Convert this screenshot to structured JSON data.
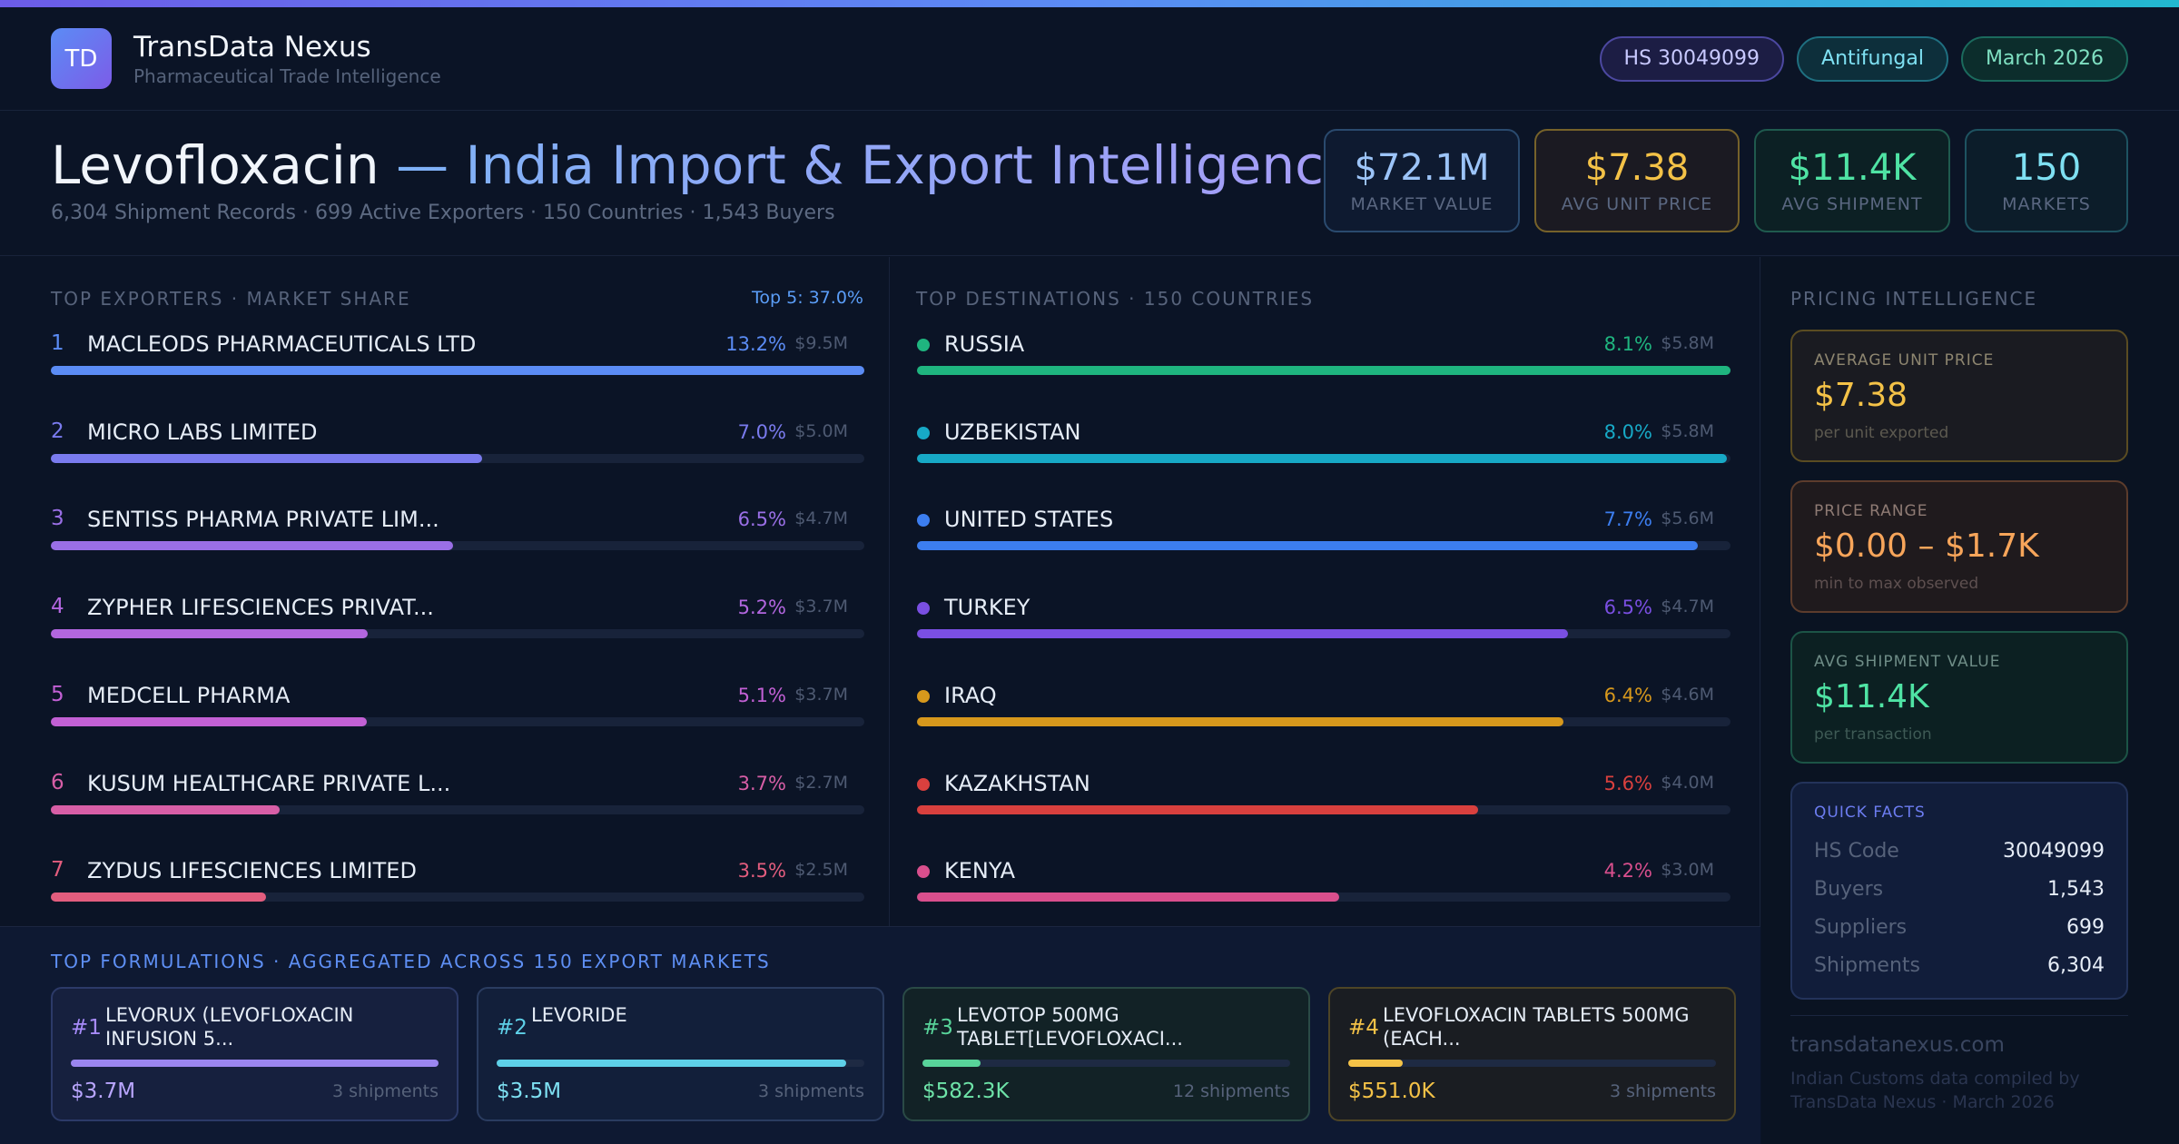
{
  "brand": {
    "logo": "TD",
    "name": "TransData Nexus",
    "subtitle": "Pharmaceutical Trade Intelligence"
  },
  "tags": {
    "hs": "HS 30049099",
    "category": "Antifungal",
    "period": "March 2026"
  },
  "title": {
    "drug": "Levofloxacin",
    "rest": " — India Import & Export Intelligence",
    "subtitle": "6,304 Shipment Records · 699 Active Exporters · 150 Countries · 1,543 Buyers"
  },
  "kpis": [
    {
      "value": "$72.1M",
      "label": "MARKET VALUE"
    },
    {
      "value": "$7.38",
      "label": "AVG UNIT PRICE"
    },
    {
      "value": "$11.4K",
      "label": "AVG SHIPMENT"
    },
    {
      "value": "150",
      "label": "MARKETS"
    }
  ],
  "exporters": {
    "title": "TOP EXPORTERS · MARKET SHARE",
    "top5": "Top 5: 37.0%",
    "items": [
      {
        "rank": "1",
        "name": "MACLEODS PHARMACEUTICALS LTD",
        "pct": "13.2%",
        "value": "$9.5M",
        "share": 1.0,
        "color": "#5b8cf5"
      },
      {
        "rank": "2",
        "name": "MICRO LABS LIMITED",
        "pct": "7.0%",
        "value": "$5.0M",
        "share": 0.53,
        "color": "#7a7bee"
      },
      {
        "rank": "3",
        "name": "SENTISS PHARMA PRIVATE LIM...",
        "pct": "6.5%",
        "value": "$4.7M",
        "share": 0.494,
        "color": "#9a6fe6"
      },
      {
        "rank": "4",
        "name": "ZYPHER LIFESCIENCES PRIVAT...",
        "pct": "5.2%",
        "value": "$3.7M",
        "share": 0.39,
        "color": "#b266df"
      },
      {
        "rank": "5",
        "name": "MEDCELL PHARMA",
        "pct": "5.1%",
        "value": "$3.7M",
        "share": 0.388,
        "color": "#c260d4"
      },
      {
        "rank": "6",
        "name": "KUSUM HEALTHCARE PRIVATE L...",
        "pct": "3.7%",
        "value": "$2.7M",
        "share": 0.281,
        "color": "#d75ea6"
      },
      {
        "rank": "7",
        "name": "ZYDUS LIFESCIENCES LIMITED",
        "pct": "3.5%",
        "value": "$2.5M",
        "share": 0.265,
        "color": "#e35d7e"
      }
    ]
  },
  "destinations": {
    "title": "TOP DESTINATIONS · 150 COUNTRIES",
    "items": [
      {
        "name": "RUSSIA",
        "pct": "8.1%",
        "value": "$5.8M",
        "share": 1.0,
        "color": "#1fb57f"
      },
      {
        "name": "UZBEKISTAN",
        "pct": "8.0%",
        "value": "$5.8M",
        "share": 0.995,
        "color": "#17a9c6"
      },
      {
        "name": "UNITED STATES",
        "pct": "7.7%",
        "value": "$5.6M",
        "share": 0.96,
        "color": "#3c7ef0"
      },
      {
        "name": "TURKEY",
        "pct": "6.5%",
        "value": "$4.7M",
        "share": 0.8,
        "color": "#7a4fe2"
      },
      {
        "name": "IRAQ",
        "pct": "6.4%",
        "value": "$4.6M",
        "share": 0.795,
        "color": "#d7981c"
      },
      {
        "name": "KAZAKHSTAN",
        "pct": "5.6%",
        "value": "$4.0M",
        "share": 0.69,
        "color": "#d9403e"
      },
      {
        "name": "KENYA",
        "pct": "4.2%",
        "value": "$3.0M",
        "share": 0.519,
        "color": "#d94f8d"
      }
    ]
  },
  "formulations": {
    "title": "TOP FORMULATIONS · AGGREGATED ACROSS 150 EXPORT MARKETS",
    "items": [
      {
        "rank": "#1",
        "name": "LEVORUX (LEVOFLOXACIN INFUSION 5...",
        "value": "$3.7M",
        "shipments": "3 shipments",
        "share": 1.0
      },
      {
        "rank": "#2",
        "name": "LEVORIDE",
        "value": "$3.5M",
        "shipments": "3 shipments",
        "share": 0.95
      },
      {
        "rank": "#3",
        "name": "LEVOTOP 500MG TABLET[LEVOFLOXACI...",
        "value": "$582.3K",
        "shipments": "12 shipments",
        "share": 0.157
      },
      {
        "rank": "#4",
        "name": "LEVOFLOXACIN TABLETS 500MG (EACH...",
        "value": "$551.0K",
        "shipments": "3 shipments",
        "share": 0.149
      }
    ]
  },
  "sidebar": {
    "title": "PRICING INTELLIGENCE",
    "avg_price": {
      "label": "AVERAGE UNIT PRICE",
      "value": "$7.38",
      "note": "per unit exported"
    },
    "price_range": {
      "label": "PRICE RANGE",
      "value": "$0.00 – $1.7K",
      "note": "min to max observed"
    },
    "avg_shipment": {
      "label": "AVG SHIPMENT VALUE",
      "value": "$11.4K",
      "note": "per transaction"
    },
    "quick_facts": {
      "title": "QUICK FACTS",
      "items": [
        {
          "key": "HS Code",
          "value": "30049099"
        },
        {
          "key": "Buyers",
          "value": "1,543"
        },
        {
          "key": "Suppliers",
          "value": "699"
        },
        {
          "key": "Shipments",
          "value": "6,304"
        }
      ]
    },
    "footer_url": "transdatanexus.com",
    "footer_note": "Indian Customs data compiled by TransData Nexus · March 2026"
  },
  "colors": {
    "accent": "#5b8cf5",
    "gold": "#f4c247",
    "green": "#4fe3a4",
    "cyan": "#7ee0f2"
  }
}
